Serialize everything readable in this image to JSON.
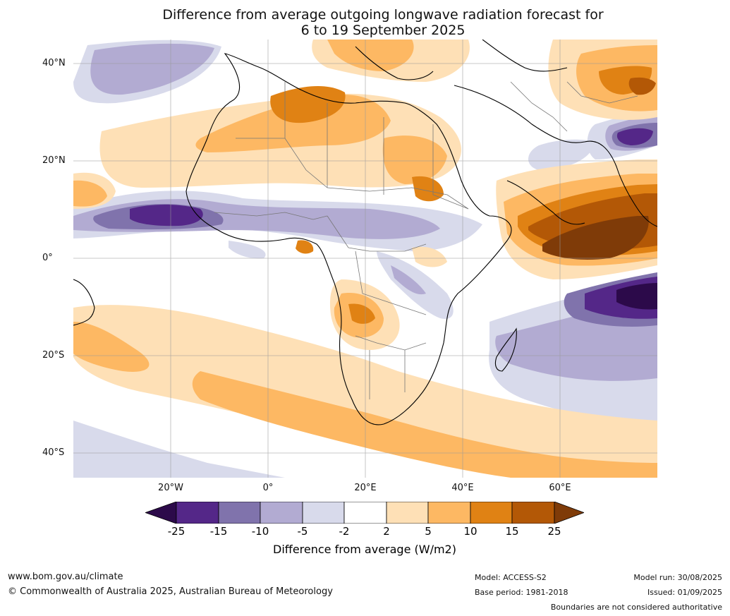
{
  "title_line1": "Difference from average outgoing longwave radiation forecast for",
  "title_line2": "6 to 19 September 2025",
  "lat_labels": [
    "40°N",
    "20°N",
    "0°",
    "20°S",
    "40°S"
  ],
  "lon_labels": [
    "20°W",
    "0°",
    "20°E",
    "40°E",
    "60°E"
  ],
  "colorbar": {
    "ticks": [
      "-25",
      "-15",
      "-10",
      "-5",
      "-2",
      "2",
      "5",
      "10",
      "15",
      "25"
    ],
    "colors": [
      "#2c0a4a",
      "#542788",
      "#8073ac",
      "#b2abd2",
      "#d8daeb",
      "#ffffff",
      "#fee0b6",
      "#fdb863",
      "#e08214",
      "#b35806",
      "#7f3b08"
    ],
    "label": "Difference from average (W/m2)"
  },
  "footer": {
    "website": "www.bom.gov.au/climate",
    "copyright": "© Commonwealth of Australia 2025, Australian Bureau of Meteorology",
    "model": "Model: ACCESS-S2",
    "base_period": "Base period: 1981-2018",
    "model_run": "Model run: 30/08/2025",
    "issued": "Issued: 01/09/2025",
    "disclaimer": "Boundaries are not considered authoritative"
  }
}
